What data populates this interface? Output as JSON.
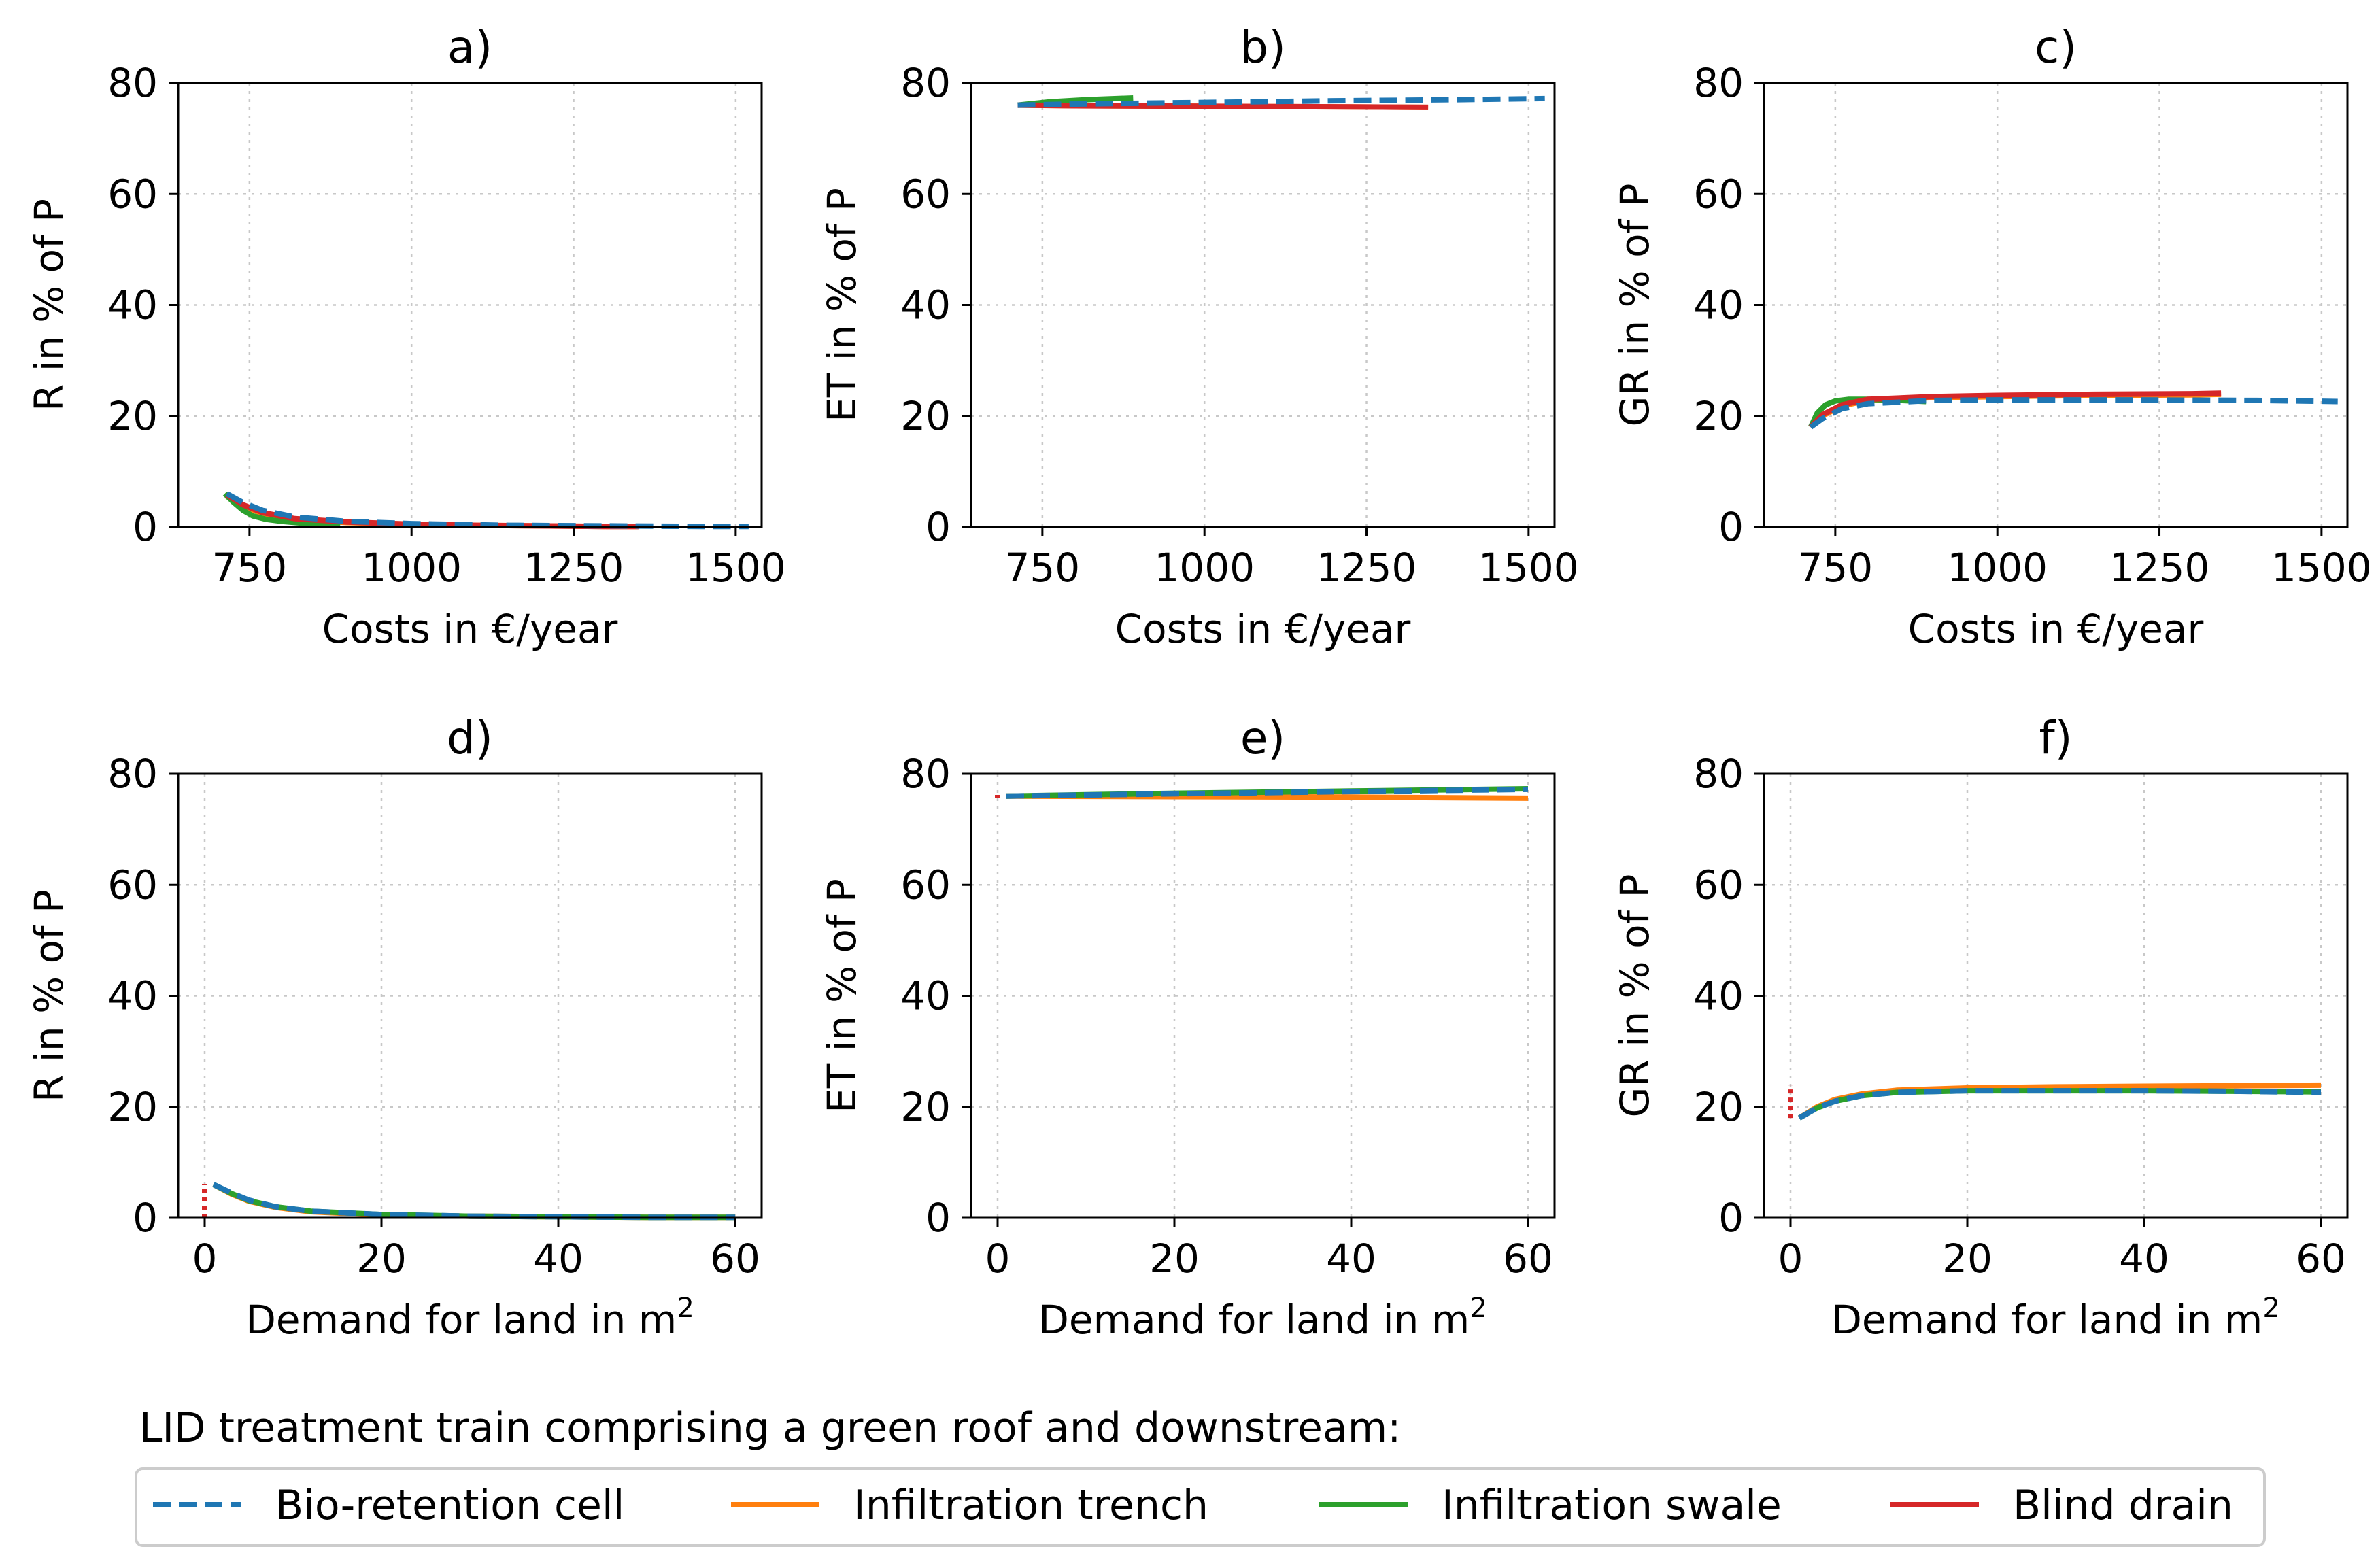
{
  "legend": {
    "title": "LID treatment train comprising a green roof and downstream:",
    "entries": [
      {
        "name": "Bio-retention cell",
        "color": "#1f77b4",
        "dash": true
      },
      {
        "name": "Infiltration trench",
        "color": "#ff7f0e",
        "dash": false
      },
      {
        "name": "Infiltration swale",
        "color": "#2ca02c",
        "dash": false
      },
      {
        "name": "Blind drain",
        "color": "#d62728",
        "dash": false
      }
    ]
  },
  "chart_data": [
    {
      "id": "a",
      "type": "line",
      "title": "a)",
      "xlabel": "Costs in €/year",
      "ylabel": "R in % of P",
      "xlim": [
        640,
        1540
      ],
      "ylim": [
        0,
        80
      ],
      "xticks": [
        {
          "v": 750,
          "label": "750"
        },
        {
          "v": 1000,
          "label": "1000"
        },
        {
          "v": 1250,
          "label": "1250"
        },
        {
          "v": 1500,
          "label": "1500"
        }
      ],
      "yticks": [
        {
          "v": 0,
          "label": "0"
        },
        {
          "v": 20,
          "label": "20"
        },
        {
          "v": 40,
          "label": "40"
        },
        {
          "v": 60,
          "label": "60"
        },
        {
          "v": 80,
          "label": "80"
        }
      ],
      "series": [
        {
          "name": "Infiltration trench",
          "x": [
            715,
            740,
            770,
            820,
            900,
            1000,
            1100,
            1200,
            1300,
            1350
          ],
          "y": [
            5.5,
            3.8,
            2.4,
            1.4,
            0.8,
            0.5,
            0.3,
            0.2,
            0.1,
            0.1
          ]
        },
        {
          "name": "Infiltration swale",
          "x": [
            712,
            725,
            740,
            755,
            775,
            800,
            830,
            860,
            890
          ],
          "y": [
            6.0,
            4.5,
            3.0,
            2.0,
            1.4,
            1.0,
            0.7,
            0.5,
            0.4
          ]
        },
        {
          "name": "Blind drain",
          "x": [
            715,
            740,
            770,
            820,
            900,
            1000,
            1100,
            1200,
            1300,
            1350
          ],
          "y": [
            5.8,
            4.0,
            2.6,
            1.5,
            0.9,
            0.5,
            0.3,
            0.2,
            0.1,
            0.1
          ]
        },
        {
          "name": "Bio-retention cell",
          "x": [
            715,
            740,
            770,
            820,
            900,
            1000,
            1150,
            1300,
            1450,
            1520
          ],
          "y": [
            6.0,
            4.4,
            3.0,
            1.8,
            1.0,
            0.6,
            0.3,
            0.2,
            0.1,
            0.1
          ]
        }
      ]
    },
    {
      "id": "b",
      "type": "line",
      "title": "b)",
      "xlabel": "Costs in €/year",
      "ylabel": "ET in % of P",
      "xlim": [
        640,
        1540
      ],
      "ylim": [
        0,
        80
      ],
      "xticks": [
        {
          "v": 750,
          "label": "750"
        },
        {
          "v": 1000,
          "label": "1000"
        },
        {
          "v": 1250,
          "label": "1250"
        },
        {
          "v": 1500,
          "label": "1500"
        }
      ],
      "yticks": [
        {
          "v": 0,
          "label": "0"
        },
        {
          "v": 20,
          "label": "20"
        },
        {
          "v": 40,
          "label": "40"
        },
        {
          "v": 60,
          "label": "60"
        },
        {
          "v": 80,
          "label": "80"
        }
      ],
      "series": [
        {
          "name": "Infiltration trench",
          "x": [
            712,
            800,
            1000,
            1200,
            1345
          ],
          "y": [
            76.0,
            75.9,
            75.8,
            75.7,
            75.6
          ]
        },
        {
          "name": "Infiltration swale",
          "x": [
            712,
            760,
            820,
            890
          ],
          "y": [
            76.0,
            76.6,
            77.0,
            77.3
          ]
        },
        {
          "name": "Blind drain",
          "x": [
            712,
            800,
            1000,
            1200,
            1345
          ],
          "y": [
            76.0,
            75.9,
            75.8,
            75.7,
            75.6
          ]
        },
        {
          "name": "Bio-retention cell",
          "x": [
            712,
            800,
            1000,
            1200,
            1400,
            1525
          ],
          "y": [
            76.0,
            76.2,
            76.5,
            76.8,
            77.0,
            77.2
          ]
        }
      ]
    },
    {
      "id": "c",
      "type": "line",
      "title": "c)",
      "xlabel": "Costs in €/year",
      "ylabel": "GR in % of P",
      "xlim": [
        640,
        1540
      ],
      "ylim": [
        0,
        80
      ],
      "xticks": [
        {
          "v": 750,
          "label": "750"
        },
        {
          "v": 1000,
          "label": "1000"
        },
        {
          "v": 1250,
          "label": "1250"
        },
        {
          "v": 1500,
          "label": "1500"
        }
      ],
      "yticks": [
        {
          "v": 0,
          "label": "0"
        },
        {
          "v": 20,
          "label": "20"
        },
        {
          "v": 40,
          "label": "40"
        },
        {
          "v": 60,
          "label": "60"
        },
        {
          "v": 80,
          "label": "80"
        }
      ],
      "series": [
        {
          "name": "Infiltration trench",
          "x": [
            712,
            730,
            760,
            800,
            900,
            1000,
            1150,
            1300,
            1345
          ],
          "y": [
            18.0,
            20.0,
            21.8,
            22.8,
            23.3,
            23.5,
            23.7,
            23.8,
            23.9
          ]
        },
        {
          "name": "Infiltration swale",
          "x": [
            712,
            722,
            735,
            750,
            770,
            800,
            850,
            890
          ],
          "y": [
            18.0,
            20.5,
            22.0,
            22.7,
            23.0,
            23.0,
            22.8,
            22.6
          ]
        },
        {
          "name": "Blind drain",
          "x": [
            712,
            730,
            760,
            800,
            900,
            1000,
            1150,
            1300,
            1345
          ],
          "y": [
            18.0,
            20.2,
            22.0,
            23.0,
            23.5,
            23.7,
            23.9,
            24.0,
            24.1
          ]
        },
        {
          "name": "Bio-retention cell",
          "x": [
            712,
            730,
            760,
            800,
            900,
            1000,
            1200,
            1400,
            1525
          ],
          "y": [
            18.0,
            19.5,
            21.3,
            22.2,
            22.8,
            22.9,
            22.9,
            22.8,
            22.6
          ]
        }
      ]
    },
    {
      "id": "d",
      "type": "line",
      "title": "d)",
      "xlabel": "Demand for land in m",
      "xlabel_sup": "2",
      "ylabel": "R in % of P",
      "xlim": [
        -3,
        63
      ],
      "ylim": [
        0,
        80
      ],
      "xticks": [
        {
          "v": 0,
          "label": "0"
        },
        {
          "v": 20,
          "label": "20"
        },
        {
          "v": 40,
          "label": "40"
        },
        {
          "v": 60,
          "label": "60"
        }
      ],
      "yticks": [
        {
          "v": 0,
          "label": "0"
        },
        {
          "v": 20,
          "label": "20"
        },
        {
          "v": 40,
          "label": "40"
        },
        {
          "v": 60,
          "label": "60"
        },
        {
          "v": 80,
          "label": "80"
        }
      ],
      "series": [
        {
          "name": "Infiltration trench",
          "x": [
            1,
            3,
            5,
            8,
            12,
            20,
            30,
            40,
            50,
            60
          ],
          "y": [
            6.0,
            4.3,
            3.0,
            1.9,
            1.1,
            0.5,
            0.3,
            0.2,
            0.1,
            0.1
          ]
        },
        {
          "name": "Infiltration swale",
          "x": [
            1,
            3,
            5,
            8,
            12,
            20,
            30,
            40,
            50,
            60
          ],
          "y": [
            6.0,
            4.4,
            3.1,
            2.0,
            1.2,
            0.6,
            0.3,
            0.2,
            0.1,
            0.1
          ]
        },
        {
          "name": "Blind drain",
          "x": [
            0,
            0
          ],
          "y": [
            0,
            6.0
          ]
        },
        {
          "name": "Bio-retention cell",
          "x": [
            1,
            3,
            5,
            8,
            12,
            20,
            30,
            40,
            50,
            60
          ],
          "y": [
            6.0,
            4.5,
            3.2,
            2.0,
            1.2,
            0.6,
            0.3,
            0.2,
            0.1,
            0.1
          ]
        }
      ]
    },
    {
      "id": "e",
      "type": "line",
      "title": "e)",
      "xlabel": "Demand for land in m",
      "xlabel_sup": "2",
      "ylabel": "ET in % of P",
      "xlim": [
        -3,
        63
      ],
      "ylim": [
        0,
        80
      ],
      "xticks": [
        {
          "v": 0,
          "label": "0"
        },
        {
          "v": 20,
          "label": "20"
        },
        {
          "v": 40,
          "label": "40"
        },
        {
          "v": 60,
          "label": "60"
        }
      ],
      "yticks": [
        {
          "v": 0,
          "label": "0"
        },
        {
          "v": 20,
          "label": "20"
        },
        {
          "v": 40,
          "label": "40"
        },
        {
          "v": 60,
          "label": "60"
        },
        {
          "v": 80,
          "label": "80"
        }
      ],
      "series": [
        {
          "name": "Infiltration trench",
          "x": [
            1,
            20,
            40,
            60
          ],
          "y": [
            76.0,
            75.9,
            75.8,
            75.6
          ]
        },
        {
          "name": "Infiltration swale",
          "x": [
            1,
            20,
            40,
            60
          ],
          "y": [
            76.0,
            76.5,
            76.9,
            77.3
          ]
        },
        {
          "name": "Blind drain",
          "x": [
            0,
            0
          ],
          "y": [
            75.7,
            76.2
          ]
        },
        {
          "name": "Bio-retention cell",
          "x": [
            1,
            20,
            40,
            60
          ],
          "y": [
            76.0,
            76.4,
            76.8,
            77.2
          ]
        }
      ]
    },
    {
      "id": "f",
      "type": "line",
      "title": "f)",
      "xlabel": "Demand for land in m",
      "xlabel_sup": "2",
      "ylabel": "GR in % of P",
      "xlim": [
        -3,
        63
      ],
      "ylim": [
        0,
        80
      ],
      "xticks": [
        {
          "v": 0,
          "label": "0"
        },
        {
          "v": 20,
          "label": "20"
        },
        {
          "v": 40,
          "label": "40"
        },
        {
          "v": 60,
          "label": "60"
        }
      ],
      "yticks": [
        {
          "v": 0,
          "label": "0"
        },
        {
          "v": 20,
          "label": "20"
        },
        {
          "v": 40,
          "label": "40"
        },
        {
          "v": 60,
          "label": "60"
        },
        {
          "v": 80,
          "label": "80"
        }
      ],
      "series": [
        {
          "name": "Infiltration trench",
          "x": [
            1,
            3,
            5,
            8,
            12,
            20,
            30,
            40,
            50,
            60
          ],
          "y": [
            18.0,
            20.0,
            21.3,
            22.3,
            23.0,
            23.4,
            23.6,
            23.7,
            23.8,
            23.9
          ]
        },
        {
          "name": "Infiltration swale",
          "x": [
            1,
            3,
            5,
            8,
            12,
            20,
            30,
            40,
            50,
            60
          ],
          "y": [
            18.0,
            19.8,
            21.0,
            22.0,
            22.6,
            22.9,
            22.9,
            22.9,
            22.8,
            22.7
          ]
        },
        {
          "name": "Blind drain",
          "x": [
            0,
            0
          ],
          "y": [
            18.0,
            24.0
          ]
        },
        {
          "name": "Bio-retention cell",
          "x": [
            1,
            3,
            5,
            8,
            12,
            20,
            30,
            40,
            50,
            60
          ],
          "y": [
            18.0,
            19.8,
            21.0,
            22.0,
            22.6,
            22.9,
            22.9,
            22.9,
            22.8,
            22.6
          ]
        }
      ]
    }
  ]
}
